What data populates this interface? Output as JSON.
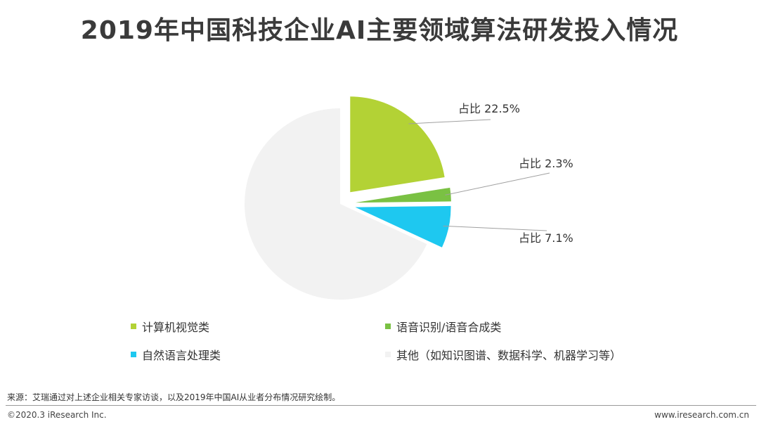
{
  "chart_data": {
    "type": "pie",
    "title": "2019年中国科技企业AI主要领域算法研发投入情况",
    "slices": [
      {
        "name": "计算机视觉类",
        "value": 22.5,
        "label": "占比 22.5%",
        "color": "#b3d235",
        "exploded": true
      },
      {
        "name": "语音识别/语音合成类",
        "value": 2.3,
        "label": "占比 2.3%",
        "color": "#7ac143",
        "exploded": true
      },
      {
        "name": "自然语言处理类",
        "value": 7.1,
        "label": "占比 7.1%",
        "color": "#1ec8f0",
        "exploded": true
      },
      {
        "name": "其他（如知识图谱、数据科学、机器学习等）",
        "value": 68.1,
        "label": "",
        "color": "#f2f2f2",
        "exploded": false
      }
    ],
    "legend_placement": "bottom"
  },
  "footer": {
    "source": "来源：艾瑞通过对上述企业相关专家访谈，以及2019年中国AI从业者分布情况研究绘制。",
    "copyright": "©2020.3 iResearch Inc.",
    "url": "www.iresearch.com.cn"
  }
}
